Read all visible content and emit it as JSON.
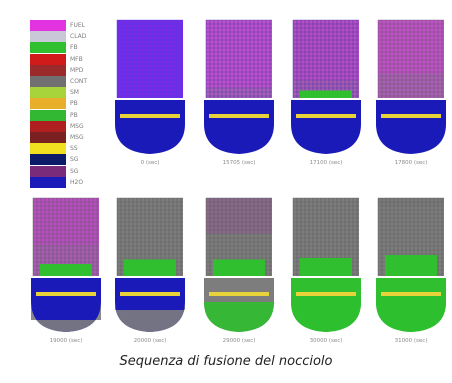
{
  "caption": "Sequenza di fusione del nocciolo",
  "legend": [
    {
      "label": "FUEL",
      "color": "#e233e0"
    },
    {
      "label": "CLAD",
      "color": "#c8c8d8"
    },
    {
      "label": "FB",
      "color": "#2fbf2f"
    },
    {
      "label": "MFB",
      "color": "#d11a1a"
    },
    {
      "label": "MPD",
      "color": "#9b2a2a"
    },
    {
      "label": "CONT",
      "color": "#707070"
    },
    {
      "label": "SM",
      "color": "#a6d43a"
    },
    {
      "label": "PB",
      "color": "#e8b02a"
    },
    {
      "label": "PB",
      "color": "#33b833"
    },
    {
      "label": "MSG",
      "color": "#b01f1f"
    },
    {
      "label": "MSG",
      "color": "#7a2020"
    },
    {
      "label": "SS",
      "color": "#f0e020"
    },
    {
      "label": "SG",
      "color": "#0c1a6a"
    },
    {
      "label": "SG",
      "color": "#7a2b7a"
    },
    {
      "label": "H2O",
      "color": "#1a1ab8"
    }
  ],
  "panels": [
    {
      "time": "0 (sec)",
      "core": "#7a2be0",
      "grid": "#3a3aff",
      "mix": 0.0,
      "melt": 0.0,
      "pool": "#1a1ab8",
      "debris": 0.0
    },
    {
      "time": "15705 (sec)",
      "core": "#c052c8",
      "grid": "#2d2da8",
      "mix": 0.15,
      "melt": 0.0,
      "pool": "#1a1ab8",
      "debris": 0.0
    },
    {
      "time": "17100 (sec)",
      "core": "#b84fc0",
      "grid": "#2d2da8",
      "mix": 0.25,
      "melt": 0.05,
      "pool": "#1a1ab8",
      "debris": 0.0
    },
    {
      "time": "17800 (sec)",
      "core": "#c052c8",
      "grid": "#555",
      "mix": 0.35,
      "melt": 0.0,
      "pool": "#1a1ab8",
      "debris": 0.0
    },
    {
      "time": "19000 (sec)",
      "core": "#b84fc0",
      "grid": "#555",
      "mix": 0.45,
      "melt": 0.2,
      "pool": "#1a1ab8",
      "debris": 0.3
    },
    {
      "time": "20000 (sec)",
      "core": "#7d7d7d",
      "grid": "#555",
      "mix": 0.8,
      "melt": 0.35,
      "pool": "#1a1ab8",
      "debris": 0.55
    },
    {
      "time": "29000 (sec)",
      "core": "#8a6a8a",
      "grid": "#555",
      "mix": 0.6,
      "melt": 0.35,
      "pool": "#7d7d7d",
      "debris": 0.75
    },
    {
      "time": "30000 (sec)",
      "core": "#7d7d7d",
      "grid": "#555",
      "mix": 0.9,
      "melt": 0.4,
      "pool": "#2fbf2f",
      "debris": 0.9
    },
    {
      "time": "31000 (sec)",
      "core": "#7a7a7a",
      "grid": "#555",
      "mix": 1.0,
      "melt": 0.5,
      "pool": "#2fbf2f",
      "debris": 1.0
    }
  ]
}
